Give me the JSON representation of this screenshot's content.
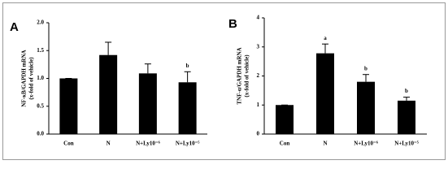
{
  "chart_data": [
    {
      "type": "bar",
      "panel_label": "A",
      "ylabel": [
        "NF-κB/GAPDH mRNA",
        "(x-fold of vehicle)"
      ],
      "categories": [
        "Con",
        "N",
        "N+Ly10⁻⁶",
        "N+Ly10⁻⁵"
      ],
      "values": [
        1.0,
        1.42,
        1.09,
        0.93
      ],
      "errors": [
        0,
        0.23,
        0.17,
        0.19
      ],
      "annotations": [
        null,
        null,
        null,
        "b"
      ],
      "color": "#000000",
      "ylim": [
        0,
        2
      ],
      "yticks": [
        {
          "value": 0,
          "label": "0.0"
        },
        0.5,
        {
          "value": 1,
          "label": "1.0"
        },
        1.5,
        {
          "value": 2,
          "label": "2.0"
        }
      ]
    },
    {
      "type": "bar",
      "panel_label": "B",
      "ylabel": [
        "TNF-α/GAPDH mRNA",
        "(x-fold of vehicle)"
      ],
      "categories": [
        "Con",
        "N",
        "N+Ly10⁻⁶",
        "N+Ly10⁻⁵"
      ],
      "values": [
        1.0,
        2.78,
        1.8,
        1.15
      ],
      "errors": [
        0,
        0.32,
        0.25,
        0.12
      ],
      "annotations": [
        null,
        "a",
        "b",
        "b"
      ],
      "color": "#000000",
      "ylim": [
        0,
        4
      ],
      "yticks": [
        0,
        1,
        2,
        3,
        4
      ]
    }
  ]
}
